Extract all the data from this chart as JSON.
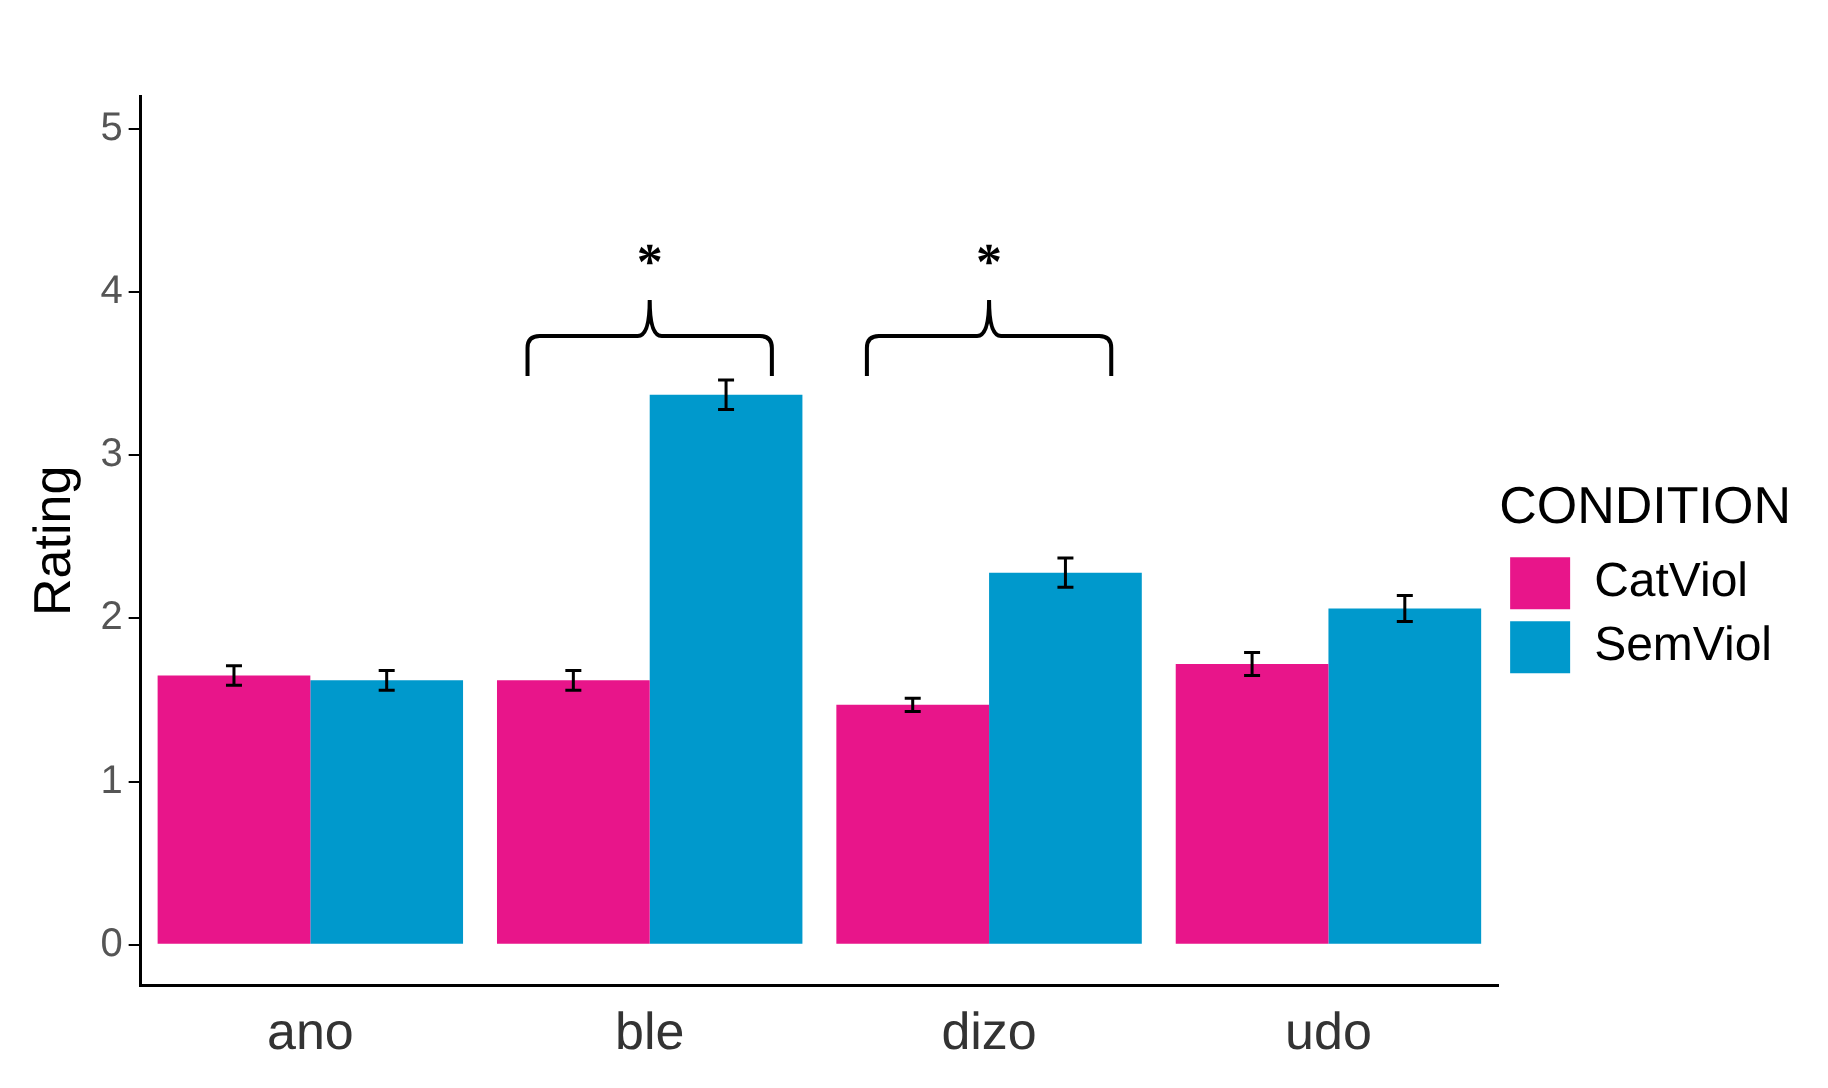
{
  "chart_data": {
    "type": "bar",
    "ylabel": "Rating",
    "legend_title": "CONDITION",
    "legend": "right",
    "grid": false,
    "categories": [
      "ano",
      "ble",
      "dizo",
      "udo"
    ],
    "series": [
      {
        "name": "CatViol",
        "color": "#e8158a",
        "values": [
          1.65,
          1.62,
          1.47,
          1.72
        ],
        "errors": [
          0.06,
          0.06,
          0.04,
          0.07
        ]
      },
      {
        "name": "SemViol",
        "color": "#0099cc",
        "values": [
          1.62,
          3.37,
          2.28,
          2.06
        ],
        "errors": [
          0.06,
          0.09,
          0.09,
          0.08
        ]
      }
    ],
    "ylim": [
      -0.25,
      5.2
    ],
    "yticks": [
      0,
      1,
      2,
      3,
      4,
      5
    ],
    "annotations": [
      "*",
      "*"
    ]
  }
}
